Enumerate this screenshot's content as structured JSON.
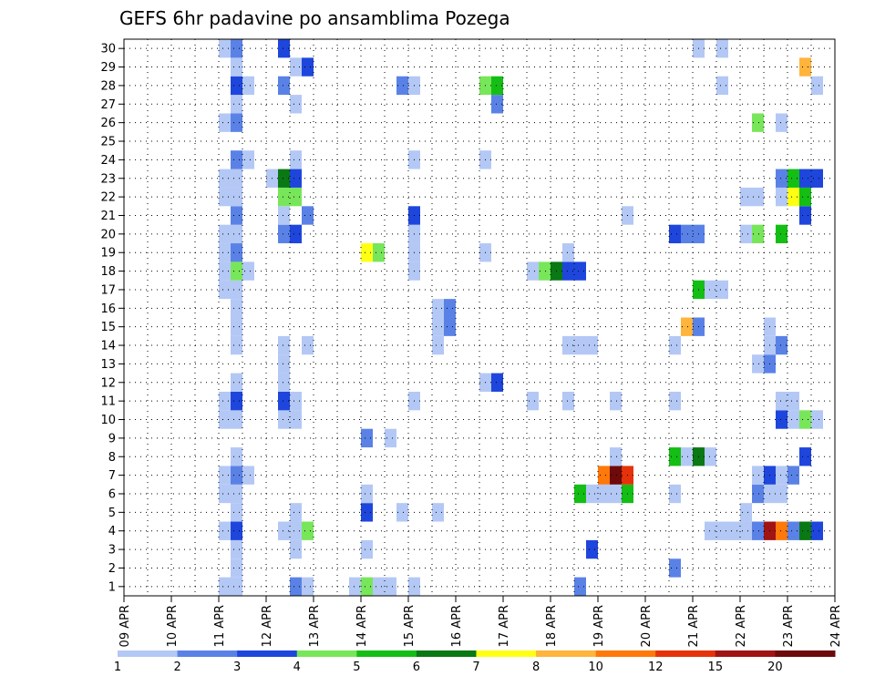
{
  "chart_data": {
    "type": "heatmap",
    "title": "GEFS 6hr padavine po ansamblima Pozega",
    "xlabel": "",
    "ylabel": "",
    "x_ticks": [
      "09 APR",
      "10 APR",
      "11 APR",
      "12 APR",
      "13 APR",
      "14 APR",
      "15 APR",
      "16 APR",
      "17 APR",
      "18 APR",
      "19 APR",
      "20 APR",
      "21 APR",
      "22 APR",
      "23 APR",
      "24 APR"
    ],
    "y_ticks": [
      "1",
      "2",
      "3",
      "4",
      "5",
      "6",
      "7",
      "8",
      "9",
      "10",
      "11",
      "12",
      "13",
      "14",
      "15",
      "16",
      "17",
      "18",
      "19",
      "20",
      "21",
      "22",
      "23",
      "24",
      "25",
      "26",
      "27",
      "28",
      "29",
      "30"
    ],
    "ylim": [
      0.5,
      30.5
    ],
    "grid": true,
    "legend": {
      "placement": "bottom",
      "levels": [
        "1",
        "2",
        "3",
        "4",
        "5",
        "6",
        "7",
        "8",
        "10",
        "12",
        "15",
        "20"
      ],
      "colors": [
        "#b4c8f5",
        "#5a82e6",
        "#1e46dc",
        "#78e65a",
        "#14be14",
        "#0a7814",
        "#ffff14",
        "#ffb43c",
        "#ff780a",
        "#e6320a",
        "#a01414",
        "#6e0a0a"
      ]
    },
    "cells": [
      [
        "11 APR 00",
        "1",
        1
      ],
      [
        "11 APR 00",
        "4",
        1
      ],
      [
        "11 APR 00",
        "6",
        1
      ],
      [
        "11 APR 00",
        "7",
        1
      ],
      [
        "11 APR 00",
        "10",
        1
      ],
      [
        "11 APR 00",
        "11",
        1
      ],
      [
        "11 APR 00",
        "17",
        1
      ],
      [
        "11 APR 00",
        "18",
        1
      ],
      [
        "11 APR 00",
        "19",
        1
      ],
      [
        "11 APR 00",
        "20",
        1
      ],
      [
        "11 APR 00",
        "22",
        1
      ],
      [
        "11 APR 00",
        "23",
        1
      ],
      [
        "11 APR 00",
        "26",
        1
      ],
      [
        "11 APR 00",
        "30",
        1
      ],
      [
        "11 APR 06",
        "1",
        1
      ],
      [
        "11 APR 06",
        "2",
        1
      ],
      [
        "11 APR 06",
        "3",
        1
      ],
      [
        "11 APR 06",
        "4",
        3
      ],
      [
        "11 APR 06",
        "5",
        1
      ],
      [
        "11 APR 06",
        "6",
        1
      ],
      [
        "11 APR 06",
        "7",
        2
      ],
      [
        "11 APR 06",
        "8",
        1
      ],
      [
        "11 APR 06",
        "10",
        1
      ],
      [
        "11 APR 06",
        "11",
        3
      ],
      [
        "11 APR 06",
        "12",
        1
      ],
      [
        "11 APR 06",
        "14",
        1
      ],
      [
        "11 APR 06",
        "15",
        1
      ],
      [
        "11 APR 06",
        "16",
        1
      ],
      [
        "11 APR 06",
        "17",
        1
      ],
      [
        "11 APR 06",
        "18",
        4
      ],
      [
        "11 APR 06",
        "19",
        2
      ],
      [
        "11 APR 06",
        "20",
        1
      ],
      [
        "11 APR 06",
        "21",
        2
      ],
      [
        "11 APR 06",
        "22",
        1
      ],
      [
        "11 APR 06",
        "23",
        1
      ],
      [
        "11 APR 06",
        "24",
        2
      ],
      [
        "11 APR 06",
        "26",
        2
      ],
      [
        "11 APR 06",
        "27",
        1
      ],
      [
        "11 APR 06",
        "28",
        3
      ],
      [
        "11 APR 06",
        "29",
        1
      ],
      [
        "11 APR 06",
        "30",
        2
      ],
      [
        "11 APR 12",
        "7",
        1
      ],
      [
        "11 APR 12",
        "18",
        1
      ],
      [
        "11 APR 12",
        "24",
        1
      ],
      [
        "11 APR 12",
        "28",
        1
      ],
      [
        "12 APR 00",
        "23",
        1
      ],
      [
        "12 APR 06",
        "4",
        1
      ],
      [
        "12 APR 06",
        "10",
        1
      ],
      [
        "12 APR 06",
        "11",
        3
      ],
      [
        "12 APR 06",
        "12",
        1
      ],
      [
        "12 APR 06",
        "13",
        1
      ],
      [
        "12 APR 06",
        "14",
        1
      ],
      [
        "12 APR 06",
        "20",
        2
      ],
      [
        "12 APR 06",
        "21",
        1
      ],
      [
        "12 APR 06",
        "22",
        4
      ],
      [
        "12 APR 06",
        "23",
        6
      ],
      [
        "12 APR 06",
        "28",
        2
      ],
      [
        "12 APR 06",
        "30",
        3
      ],
      [
        "12 APR 12",
        "1",
        2
      ],
      [
        "12 APR 12",
        "3",
        1
      ],
      [
        "12 APR 12",
        "4",
        1
      ],
      [
        "12 APR 12",
        "5",
        1
      ],
      [
        "12 APR 12",
        "10",
        1
      ],
      [
        "12 APR 12",
        "11",
        1
      ],
      [
        "12 APR 12",
        "20",
        3
      ],
      [
        "12 APR 12",
        "22",
        4
      ],
      [
        "12 APR 12",
        "23",
        3
      ],
      [
        "12 APR 12",
        "24",
        1
      ],
      [
        "12 APR 12",
        "27",
        1
      ],
      [
        "12 APR 12",
        "29",
        1
      ],
      [
        "12 APR 18",
        "1",
        1
      ],
      [
        "12 APR 18",
        "4",
        4
      ],
      [
        "12 APR 18",
        "14",
        1
      ],
      [
        "12 APR 18",
        "21",
        2
      ],
      [
        "12 APR 18",
        "29",
        3
      ],
      [
        "13 APR 18",
        "1",
        1
      ],
      [
        "14 APR 00",
        "1",
        4
      ],
      [
        "14 APR 00",
        "3",
        1
      ],
      [
        "14 APR 00",
        "5",
        3
      ],
      [
        "14 APR 00",
        "6",
        1
      ],
      [
        "14 APR 00",
        "9",
        2
      ],
      [
        "14 APR 00",
        "19",
        7
      ],
      [
        "14 APR 06",
        "1",
        1
      ],
      [
        "14 APR 06",
        "19",
        4
      ],
      [
        "14 APR 12",
        "1",
        1
      ],
      [
        "14 APR 12",
        "9",
        1
      ],
      [
        "14 APR 18",
        "5",
        1
      ],
      [
        "14 APR 18",
        "28",
        2
      ],
      [
        "15 APR 00",
        "1",
        1
      ],
      [
        "15 APR 00",
        "11",
        1
      ],
      [
        "15 APR 00",
        "18",
        1
      ],
      [
        "15 APR 00",
        "19",
        1
      ],
      [
        "15 APR 00",
        "20",
        1
      ],
      [
        "15 APR 00",
        "21",
        3
      ],
      [
        "15 APR 00",
        "24",
        1
      ],
      [
        "15 APR 00",
        "28",
        1
      ],
      [
        "15 APR 12",
        "5",
        1
      ],
      [
        "15 APR 12",
        "14",
        1
      ],
      [
        "15 APR 12",
        "15",
        1
      ],
      [
        "15 APR 12",
        "16",
        1
      ],
      [
        "15 APR 18",
        "15",
        2
      ],
      [
        "15 APR 18",
        "16",
        2
      ],
      [
        "16 APR 12",
        "12",
        1
      ],
      [
        "16 APR 12",
        "19",
        1
      ],
      [
        "16 APR 12",
        "24",
        1
      ],
      [
        "16 APR 12",
        "28",
        4
      ],
      [
        "16 APR 18",
        "12",
        3
      ],
      [
        "16 APR 18",
        "27",
        2
      ],
      [
        "16 APR 18",
        "28",
        5
      ],
      [
        "17 APR 12",
        "11",
        1
      ],
      [
        "17 APR 12",
        "18",
        1
      ],
      [
        "17 APR 18",
        "18",
        4
      ],
      [
        "18 APR 00",
        "18",
        6
      ],
      [
        "18 APR 06",
        "11",
        1
      ],
      [
        "18 APR 06",
        "14",
        1
      ],
      [
        "18 APR 06",
        "18",
        3
      ],
      [
        "18 APR 06",
        "19",
        1
      ],
      [
        "18 APR 12",
        "1",
        2
      ],
      [
        "18 APR 12",
        "6",
        5
      ],
      [
        "18 APR 12",
        "14",
        1
      ],
      [
        "18 APR 12",
        "18",
        3
      ],
      [
        "18 APR 18",
        "3",
        3
      ],
      [
        "18 APR 18",
        "6",
        1
      ],
      [
        "18 APR 18",
        "14",
        1
      ],
      [
        "19 APR 00",
        "6",
        1
      ],
      [
        "19 APR 00",
        "7",
        10
      ],
      [
        "19 APR 06",
        "6",
        1
      ],
      [
        "19 APR 06",
        "7",
        20
      ],
      [
        "19 APR 06",
        "8",
        1
      ],
      [
        "19 APR 06",
        "11",
        1
      ],
      [
        "19 APR 12",
        "6",
        5
      ],
      [
        "19 APR 12",
        "7",
        12
      ],
      [
        "19 APR 12",
        "21",
        1
      ],
      [
        "20 APR 12",
        "2",
        2
      ],
      [
        "20 APR 12",
        "6",
        1
      ],
      [
        "20 APR 12",
        "8",
        5
      ],
      [
        "20 APR 12",
        "11",
        1
      ],
      [
        "20 APR 12",
        "14",
        1
      ],
      [
        "20 APR 12",
        "20",
        3
      ],
      [
        "20 APR 18",
        "8",
        1
      ],
      [
        "20 APR 18",
        "15",
        8
      ],
      [
        "20 APR 18",
        "20",
        2
      ],
      [
        "21 APR 00",
        "8",
        6
      ],
      [
        "21 APR 00",
        "15",
        2
      ],
      [
        "21 APR 00",
        "17",
        5
      ],
      [
        "21 APR 00",
        "20",
        2
      ],
      [
        "21 APR 00",
        "30",
        1
      ],
      [
        "21 APR 06",
        "4",
        1
      ],
      [
        "21 APR 06",
        "8",
        1
      ],
      [
        "21 APR 06",
        "17",
        1
      ],
      [
        "21 APR 12",
        "4",
        1
      ],
      [
        "21 APR 12",
        "17",
        1
      ],
      [
        "21 APR 12",
        "28",
        1
      ],
      [
        "21 APR 12",
        "30",
        1
      ],
      [
        "21 APR 18",
        "4",
        1
      ],
      [
        "22 APR 00",
        "4",
        1
      ],
      [
        "22 APR 00",
        "5",
        1
      ],
      [
        "22 APR 00",
        "20",
        1
      ],
      [
        "22 APR 00",
        "22",
        1
      ],
      [
        "22 APR 06",
        "4",
        2
      ],
      [
        "22 APR 06",
        "6",
        2
      ],
      [
        "22 APR 06",
        "7",
        1
      ],
      [
        "22 APR 06",
        "13",
        1
      ],
      [
        "22 APR 06",
        "20",
        4
      ],
      [
        "22 APR 06",
        "22",
        1
      ],
      [
        "22 APR 06",
        "26",
        4
      ],
      [
        "22 APR 12",
        "4",
        15
      ],
      [
        "22 APR 12",
        "6",
        1
      ],
      [
        "22 APR 12",
        "7",
        3
      ],
      [
        "22 APR 12",
        "13",
        2
      ],
      [
        "22 APR 12",
        "14",
        1
      ],
      [
        "22 APR 12",
        "15",
        1
      ],
      [
        "22 APR 18",
        "4",
        10
      ],
      [
        "22 APR 18",
        "6",
        1
      ],
      [
        "22 APR 18",
        "7",
        1
      ],
      [
        "22 APR 18",
        "10",
        3
      ],
      [
        "22 APR 18",
        "11",
        1
      ],
      [
        "22 APR 18",
        "14",
        2
      ],
      [
        "22 APR 18",
        "20",
        5
      ],
      [
        "22 APR 18",
        "22",
        1
      ],
      [
        "22 APR 18",
        "23",
        2
      ],
      [
        "22 APR 18",
        "26",
        1
      ],
      [
        "23 APR 00",
        "4",
        2
      ],
      [
        "23 APR 00",
        "7",
        2
      ],
      [
        "23 APR 00",
        "10",
        1
      ],
      [
        "23 APR 00",
        "11",
        1
      ],
      [
        "23 APR 00",
        "22",
        7
      ],
      [
        "23 APR 00",
        "23",
        5
      ],
      [
        "23 APR 06",
        "4",
        6
      ],
      [
        "23 APR 06",
        "8",
        3
      ],
      [
        "23 APR 06",
        "10",
        4
      ],
      [
        "23 APR 06",
        "21",
        3
      ],
      [
        "23 APR 06",
        "22",
        5
      ],
      [
        "23 APR 06",
        "23",
        3
      ],
      [
        "23 APR 06",
        "29",
        8
      ],
      [
        "23 APR 12",
        "4",
        3
      ],
      [
        "23 APR 12",
        "10",
        1
      ],
      [
        "23 APR 12",
        "23",
        3
      ],
      [
        "23 APR 12",
        "28",
        1
      ]
    ]
  }
}
